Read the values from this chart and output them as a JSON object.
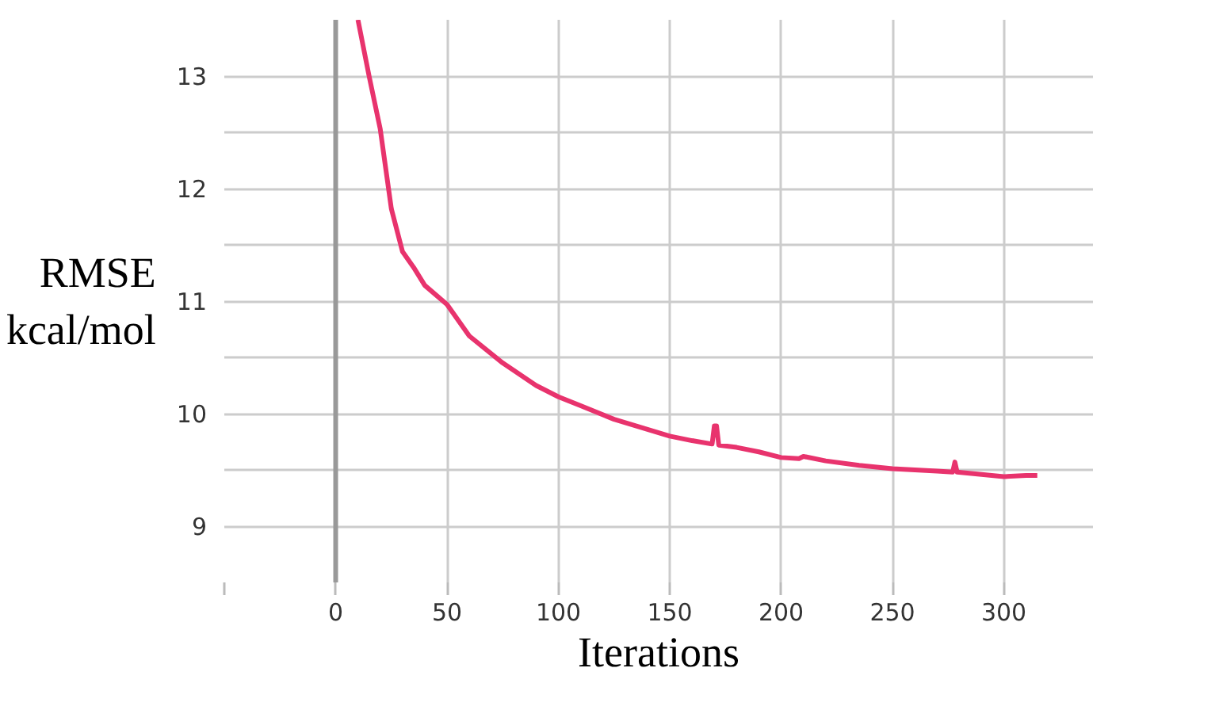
{
  "chart_data": {
    "type": "line",
    "xlabel": "Iterations",
    "ylabel": "RMSE\nkcal/mol",
    "xlim": [
      -50,
      340
    ],
    "ylim": [
      8.5,
      13.5
    ],
    "xticks": [
      {
        "value": -50,
        "label": null
      },
      0,
      50,
      100,
      150,
      200,
      250,
      300
    ],
    "yticks": [
      9,
      {
        "value": 9.5,
        "label": null
      },
      10,
      {
        "value": 10.5,
        "label": null
      },
      11,
      {
        "value": 11.5,
        "label": null
      },
      12,
      {
        "value": 12.5,
        "label": null
      },
      13
    ],
    "grid": true,
    "line_style": "solid",
    "ref_lines": [
      {
        "axis": "x",
        "value": 0,
        "color": "#999999"
      }
    ],
    "series": [
      {
        "color": "#e8336d",
        "x": [
          10,
          15,
          20,
          25,
          30,
          35,
          40,
          50,
          60,
          75,
          90,
          100,
          110,
          125,
          140,
          150,
          160,
          169,
          170,
          171,
          172,
          180,
          190,
          200,
          208,
          210,
          220,
          235,
          250,
          260,
          270,
          277,
          278,
          279,
          290,
          300,
          310,
          315
        ],
        "values": [
          13.5,
          13.0,
          12.53,
          11.82,
          11.44,
          11.3,
          11.14,
          10.97,
          10.69,
          10.45,
          10.25,
          10.15,
          10.07,
          9.95,
          9.86,
          9.8,
          9.76,
          9.73,
          9.89,
          9.89,
          9.72,
          9.7,
          9.66,
          9.61,
          9.6,
          9.62,
          9.58,
          9.54,
          9.51,
          9.5,
          9.49,
          9.48,
          9.57,
          9.48,
          9.46,
          9.44,
          9.45,
          9.45
        ]
      }
    ]
  }
}
